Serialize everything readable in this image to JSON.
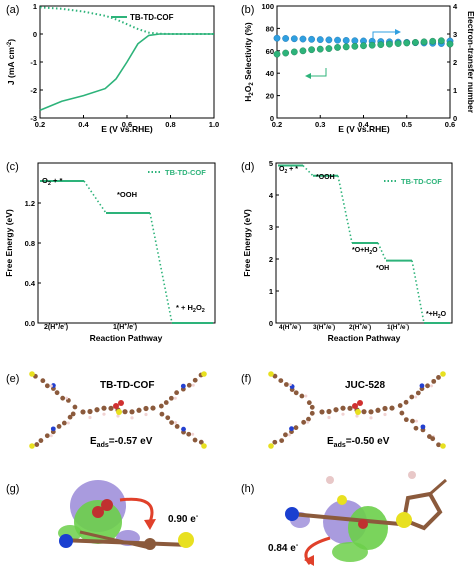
{
  "chart_data": [
    {
      "panel": "(a)",
      "type": "line",
      "legend": "TB-TD-COF",
      "xlabel": "E (V vs.RHE)",
      "ylabel_prefix": "J (mA cm",
      "ylabel_sup": "-2",
      "ylabel_suffix": ")",
      "xlim": [
        0.2,
        1.0
      ],
      "ylim": [
        -3,
        1
      ],
      "xticks": [
        "0.2",
        "0.4",
        "0.6",
        "0.8",
        "1.0"
      ],
      "yticks": [
        "-3",
        "-2",
        "-1",
        "0",
        "1"
      ],
      "series": [
        {
          "name": "TB-TD-COF",
          "style": "solid",
          "x": [
            0.2,
            0.3,
            0.4,
            0.5,
            0.55,
            0.6,
            0.65,
            0.7,
            0.75,
            0.8,
            0.9,
            1.0
          ],
          "y": [
            -2.72,
            -2.4,
            -2.2,
            -1.95,
            -1.6,
            -1.0,
            -0.35,
            -0.05,
            0.0,
            0.0,
            0.0,
            0.0
          ]
        },
        {
          "name": "",
          "style": "dotted",
          "x": [
            0.2,
            0.3,
            0.4,
            0.5,
            0.55,
            0.6,
            0.65,
            0.7,
            0.75,
            0.8,
            0.9,
            1.0
          ],
          "y": [
            0.95,
            0.9,
            0.8,
            0.65,
            0.52,
            0.35,
            0.18,
            0.05,
            0.01,
            0.0,
            0.0,
            0.0
          ]
        }
      ]
    },
    {
      "panel": "(b)",
      "type": "scatter",
      "xlabel": "E (V vs.RHE)",
      "ylabel_left": "H2O2 Selectivity (%)",
      "ylabel_right": "Electron-transfer number",
      "xlim": [
        0.2,
        0.6
      ],
      "ylim_left": [
        0,
        100
      ],
      "ylim_right": [
        0,
        4
      ],
      "xticks": [
        "0.2",
        "0.3",
        "0.4",
        "0.5",
        "0.6"
      ],
      "yticks_left": [
        "0",
        "20",
        "40",
        "60",
        "80",
        "100"
      ],
      "yticks_right": [
        "0",
        "1",
        "2",
        "3",
        "4"
      ],
      "series": [
        {
          "name": "electron-transfer",
          "axis": "right",
          "x": [
            0.2,
            0.22,
            0.24,
            0.26,
            0.28,
            0.3,
            0.32,
            0.34,
            0.36,
            0.38,
            0.4,
            0.42,
            0.44,
            0.46,
            0.48,
            0.5,
            0.52,
            0.54,
            0.56,
            0.58,
            0.6
          ],
          "y": [
            2.85,
            2.84,
            2.83,
            2.82,
            2.81,
            2.8,
            2.79,
            2.78,
            2.77,
            2.76,
            2.75,
            2.74,
            2.73,
            2.72,
            2.71,
            2.7,
            2.69,
            2.68,
            2.67,
            2.66,
            2.75
          ]
        },
        {
          "name": "H2O2 selectivity",
          "axis": "left",
          "x": [
            0.2,
            0.22,
            0.24,
            0.26,
            0.28,
            0.3,
            0.32,
            0.34,
            0.36,
            0.38,
            0.4,
            0.42,
            0.44,
            0.46,
            0.48,
            0.5,
            0.52,
            0.54,
            0.56,
            0.58,
            0.6
          ],
          "y": [
            57,
            58,
            59,
            60,
            61,
            61.5,
            62,
            63,
            63.5,
            64,
            64.5,
            65,
            65.5,
            66,
            66.5,
            67,
            67.5,
            68,
            68.5,
            69,
            66
          ]
        }
      ]
    },
    {
      "panel": "(c)",
      "type": "line",
      "legend": "TB-TD-COF",
      "xlabel": "Reaction Pathway",
      "ylabel": "Free Energy (eV)",
      "ylim": [
        0,
        1.6
      ],
      "yticks": [
        "0.0",
        "0.4",
        "0.8",
        "1.2"
      ],
      "levels": [
        1.42,
        1.1,
        0.0
      ],
      "species": [
        "O2 + *",
        "*OOH",
        "* + H2O2"
      ],
      "categories": [
        "2(H+/e-)",
        "1(H+/e-)",
        ""
      ]
    },
    {
      "panel": "(d)",
      "type": "line",
      "legend": "TB-TD-COF",
      "xlabel": "Reaction Pathway",
      "ylabel": "Free Energy (eV)",
      "ylim": [
        0,
        5
      ],
      "yticks": [
        "0",
        "1",
        "2",
        "3",
        "4",
        "5"
      ],
      "levels": [
        4.92,
        4.6,
        2.5,
        1.95,
        0.0
      ],
      "species": [
        "O2 + *",
        "*OOH",
        "*O+H2O",
        "*OH",
        "*+H2O"
      ],
      "categories": [
        "4(H+/e-)",
        "3(H+/e-)",
        "2(H+/e-)",
        "1(H+/e-)",
        ""
      ]
    }
  ],
  "panels": {
    "a": "(a)",
    "b": "(b)",
    "c": "(c)",
    "d": "(d)",
    "e": "(e)",
    "f": "(f)",
    "g": "(g)",
    "h": "(h)"
  },
  "structures": {
    "e_title": "TB-TD-COF",
    "e_energy": "=-0.57 eV",
    "f_title": "JUC-528",
    "f_energy": "=-0.50 eV",
    "eads_main": "E",
    "eads_sub": "ads",
    "g_charge": "0.90 e",
    "h_charge": "0.84 e",
    "charge_sup": "-"
  },
  "colors": {
    "green": "#2db37a",
    "blue": "#2f9fe0",
    "ochre": "#8b5a3c",
    "arrow": "#e0402a",
    "iso_green": "#6ccf4a",
    "iso_purple": "#9a8ad8"
  }
}
